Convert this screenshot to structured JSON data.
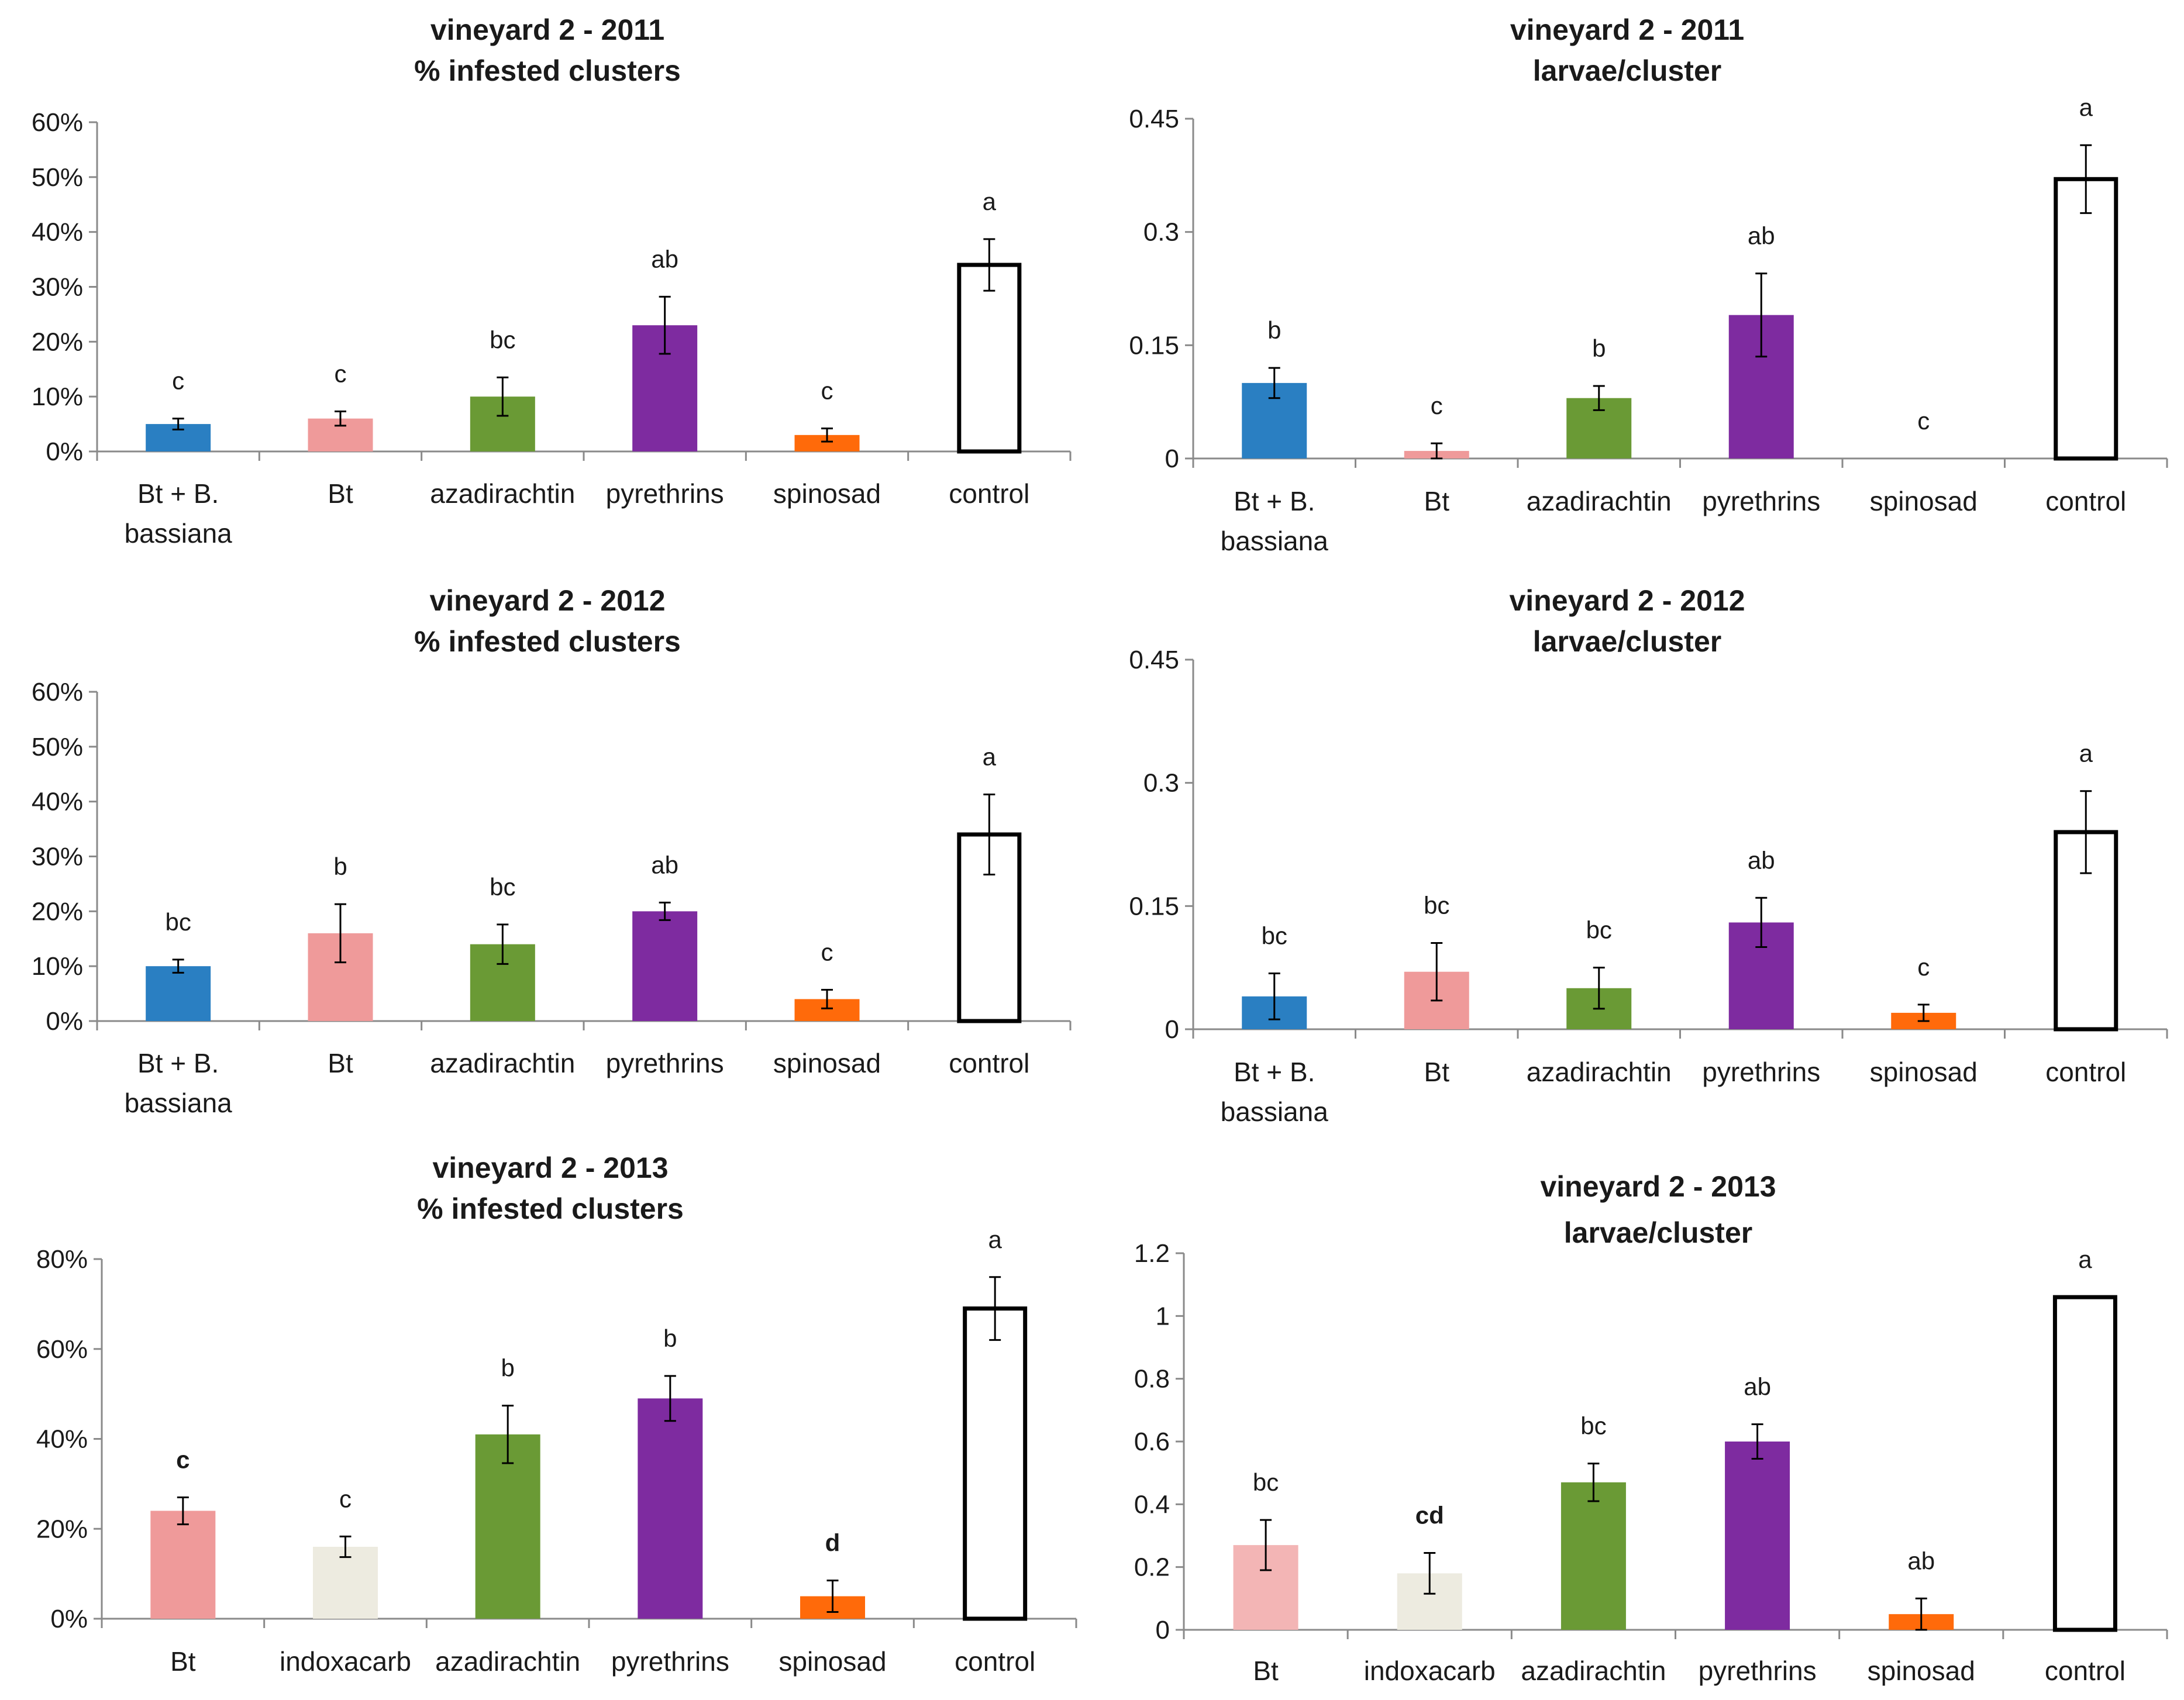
{
  "chart_data": [
    {
      "type": "bar",
      "title": "vineyard 2 - 2011",
      "subtitle": "% infested clusters",
      "xlabel": "",
      "ylabel": "",
      "ylim": [
        0,
        60
      ],
      "yticks": [
        0,
        10,
        20,
        30,
        40,
        50,
        60
      ],
      "ytick_labels": [
        "0%",
        "10%",
        "20%",
        "30%",
        "40%",
        "50%",
        "60%"
      ],
      "categories": [
        [
          "Bt + B.",
          "bassiana"
        ],
        [
          "Bt"
        ],
        [
          "azadirachtin"
        ],
        [
          "pyrethrins"
        ],
        [
          "spinosad"
        ],
        [
          "control"
        ]
      ],
      "values": [
        5,
        6,
        10,
        23,
        3,
        34
      ],
      "errors": [
        1,
        1.3,
        3.5,
        5.2,
        1.2,
        4.7
      ],
      "letters": [
        "c",
        "c",
        "bc",
        "ab",
        "c",
        "a"
      ],
      "colors": [
        "#2a7fc2",
        "#ef9a9a",
        "#6a9a35",
        "#7e2ba0",
        "#ff6a0a",
        "#ffffff"
      ],
      "grid": false
    },
    {
      "type": "bar",
      "title": "vineyard 2 - 2011",
      "subtitle": "larvae/cluster",
      "xlabel": "",
      "ylabel": "",
      "ylim": [
        0,
        0.45
      ],
      "yticks": [
        0,
        0.15,
        0.3,
        0.45
      ],
      "ytick_labels": [
        "0",
        "0.15",
        "0.3",
        "0.45"
      ],
      "categories": [
        [
          "Bt + B.",
          "bassiana"
        ],
        [
          "Bt"
        ],
        [
          "azadirachtin"
        ],
        [
          "pyrethrins"
        ],
        [
          "spinosad"
        ],
        [
          "control"
        ]
      ],
      "values": [
        0.1,
        0.01,
        0.08,
        0.19,
        0,
        0.37
      ],
      "errors": [
        0.02,
        0.01,
        0.016,
        0.055,
        0,
        0.045
      ],
      "letters": [
        "b",
        "c",
        "b",
        "ab",
        "c",
        "a"
      ],
      "colors": [
        "#2a7fc2",
        "#ef9a9a",
        "#6a9a35",
        "#7e2ba0",
        "#ff6a0a",
        "#ffffff"
      ],
      "grid": false
    },
    {
      "type": "bar",
      "title": "vineyard 2 - 2012",
      "subtitle": "% infested clusters",
      "xlabel": "",
      "ylabel": "",
      "ylim": [
        0,
        60
      ],
      "yticks": [
        0,
        10,
        20,
        30,
        40,
        50,
        60
      ],
      "ytick_labels": [
        "0%",
        "10%",
        "20%",
        "30%",
        "40%",
        "50%",
        "60%"
      ],
      "categories": [
        [
          "Bt + B.",
          "bassiana"
        ],
        [
          "Bt"
        ],
        [
          "azadirachtin"
        ],
        [
          "pyrethrins"
        ],
        [
          "spinosad"
        ],
        [
          "control"
        ]
      ],
      "values": [
        10,
        16,
        14,
        20,
        4,
        34
      ],
      "errors": [
        1.2,
        5.3,
        3.6,
        1.6,
        1.7,
        7.3
      ],
      "letters": [
        "bc",
        "b",
        "bc",
        "ab",
        "c",
        "a"
      ],
      "colors": [
        "#2a7fc2",
        "#ef9a9a",
        "#6a9a35",
        "#7e2ba0",
        "#ff6a0a",
        "#ffffff"
      ],
      "grid": false
    },
    {
      "type": "bar",
      "title": "vineyard 2 - 2012",
      "subtitle": "larvae/cluster",
      "xlabel": "",
      "ylabel": "",
      "ylim": [
        0,
        0.45
      ],
      "yticks": [
        0,
        0.15,
        0.3,
        0.45
      ],
      "ytick_labels": [
        "0",
        "0.15",
        "0.3",
        "0.45"
      ],
      "categories": [
        [
          "Bt + B.",
          "bassiana"
        ],
        [
          "Bt"
        ],
        [
          "azadirachtin"
        ],
        [
          "pyrethrins"
        ],
        [
          "spinosad"
        ],
        [
          "control"
        ]
      ],
      "values": [
        0.04,
        0.07,
        0.05,
        0.13,
        0.02,
        0.24
      ],
      "errors": [
        0.028,
        0.035,
        0.025,
        0.03,
        0.01,
        0.05
      ],
      "letters": [
        "bc",
        "bc",
        "bc",
        "ab",
        "c",
        "a"
      ],
      "colors": [
        "#2a7fc2",
        "#ef9a9a",
        "#6a9a35",
        "#7e2ba0",
        "#ff6a0a",
        "#ffffff"
      ],
      "grid": false
    },
    {
      "type": "bar",
      "title": "vineyard 2 - 2013",
      "subtitle": "% infested clusters",
      "xlabel": "",
      "ylabel": "",
      "ylim": [
        0,
        80
      ],
      "yticks": [
        0,
        20,
        40,
        60,
        80
      ],
      "ytick_labels": [
        "0%",
        "20%",
        "40%",
        "60%",
        "80%"
      ],
      "categories": [
        [
          "Bt"
        ],
        [
          "indoxacarb"
        ],
        [
          "azadirachtin"
        ],
        [
          "pyrethrins"
        ],
        [
          "spinosad"
        ],
        [
          "control"
        ]
      ],
      "values": [
        24,
        16,
        41,
        49,
        5,
        69
      ],
      "errors": [
        3,
        2.3,
        6.4,
        5,
        3.5,
        7
      ],
      "letters": [
        "c",
        "c",
        "b",
        "b",
        "d",
        "a"
      ],
      "bold_letters": [
        true,
        false,
        false,
        false,
        true,
        false
      ],
      "colors": [
        "#ef9a9a",
        "#edebe0",
        "#6a9a35",
        "#7e2ba0",
        "#ff6a0a",
        "#ffffff"
      ],
      "grid": false
    },
    {
      "type": "bar",
      "title": "vineyard 2 - 2013",
      "subtitle": "larvae/cluster",
      "xlabel": "",
      "ylabel": "",
      "ylim": [
        0,
        1.2
      ],
      "yticks": [
        0,
        0.2,
        0.4,
        0.6,
        0.8,
        1,
        1.2
      ],
      "ytick_labels": [
        "0",
        "0.2",
        "0.4",
        "0.6",
        "0.8",
        "1",
        "1.2"
      ],
      "categories": [
        [
          "Bt"
        ],
        [
          "indoxacarb"
        ],
        [
          "azadirachtin"
        ],
        [
          "pyrethrins"
        ],
        [
          "spinosad"
        ],
        [
          "control"
        ]
      ],
      "values": [
        0.27,
        0.18,
        0.47,
        0.6,
        0.05,
        1.06
      ],
      "errors": [
        0.08,
        0.065,
        0.06,
        0.055,
        0.05,
        0
      ],
      "letters": [
        "bc",
        "cd",
        "bc",
        "ab",
        "ab",
        "a"
      ],
      "bold_letters": [
        false,
        true,
        false,
        false,
        false,
        false
      ],
      "colors": [
        "#f3b5b5",
        "#edebe0",
        "#6a9a35",
        "#7e2ba0",
        "#ff6a0a",
        "#ffffff"
      ],
      "grid": false
    }
  ]
}
